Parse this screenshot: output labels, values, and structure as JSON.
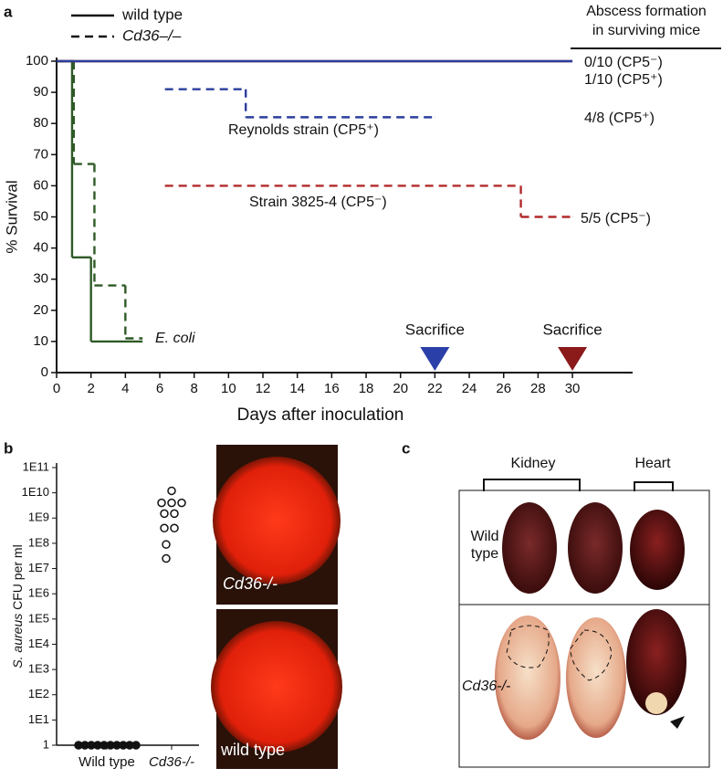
{
  "chart_data": [
    {
      "type": "step",
      "panel": "a",
      "xlabel": "Days after inoculation",
      "ylabel": "% Survival",
      "xlim": [
        0,
        33.5
      ],
      "ylim": [
        0,
        100
      ],
      "xticks": [
        0,
        2,
        4,
        6,
        8,
        10,
        12,
        14,
        16,
        18,
        20,
        22,
        24,
        26,
        28,
        30
      ],
      "yticks": [
        0,
        10,
        20,
        30,
        40,
        50,
        60,
        70,
        80,
        90,
        100
      ],
      "legend": [
        {
          "label": "wild type",
          "dashed": false
        },
        {
          "label": "Cd36–/–",
          "dashed": true
        }
      ],
      "series": [
        {
          "color": "#2e5a26",
          "dashed": false,
          "x": [
            0,
            0.9,
            2,
            5
          ],
          "values": [
            100,
            37,
            10,
            10
          ]
        },
        {
          "color": "#2e5a26",
          "dashed": true,
          "x": [
            0,
            1,
            2.2,
            4,
            5
          ],
          "values": [
            100,
            67,
            28,
            11,
            11
          ]
        },
        {
          "color": "#b22a2a",
          "dashed": false,
          "x": [
            0,
            30
          ],
          "values": [
            100,
            100
          ]
        },
        {
          "color": "#b22a2a",
          "dashed": true,
          "x": [
            6.3,
            27,
            30
          ],
          "values": [
            60,
            50,
            50
          ]
        },
        {
          "color": "#2b3e9c",
          "dashed": false,
          "x": [
            0,
            30
          ],
          "values": [
            100,
            100
          ]
        },
        {
          "color": "#2b3e9c",
          "dashed": true,
          "x": [
            6.3,
            11,
            22
          ],
          "values": [
            91,
            82,
            82
          ]
        }
      ],
      "annotations": [
        "Reynolds strain  (CP5⁺)",
        "Strain 3825-4 (CP5⁻)",
        "E. coli",
        "5/5 (CP5⁻)",
        "0/10 (CP5⁻)",
        "1/10 (CP5⁺)",
        "4/8 (CP5⁺)"
      ],
      "abscess_header": [
        "Abscess formation",
        "in surviving mice"
      ],
      "markers": [
        {
          "label": "Sacrifice",
          "x": 22,
          "color": "#2b3fa8"
        },
        {
          "label": "Sacrifice",
          "x": 30,
          "color": "#8b1a1a"
        }
      ]
    },
    {
      "type": "scatter",
      "panel": "b",
      "ylabel": [
        "S. aureus",
        " CFU per ml"
      ],
      "log_scale": true,
      "ylim": [
        1,
        100000000000
      ],
      "yticks": [
        1,
        {
          "value": 10,
          "label": "1E1"
        },
        {
          "value": 100,
          "label": "1E2"
        },
        {
          "value": 1000,
          "label": "1E3"
        },
        {
          "value": 10000,
          "label": "1E4"
        },
        {
          "value": 100000,
          "label": "1E5"
        },
        {
          "value": 1000000,
          "label": "1E6"
        },
        {
          "value": 10000000,
          "label": "1E7"
        },
        {
          "value": 100000000,
          "label": "1E8"
        },
        {
          "value": 1000000000,
          "label": "1E9"
        },
        {
          "value": 10000000000,
          "label": "1E10"
        },
        {
          "value": 100000000000,
          "label": "1E11"
        }
      ],
      "categories": [
        "Wild type",
        "Cd36-/-"
      ],
      "series": [
        {
          "filled": true,
          "values": [
            1,
            1,
            1,
            1,
            1,
            1,
            1,
            1,
            1,
            1
          ]
        },
        {
          "filled": false,
          "values": [
            12000000000,
            4000000000,
            4000000000,
            4000000000,
            1500000000,
            1500000000,
            400000000,
            400000000,
            90000000,
            25000000
          ]
        }
      ],
      "plate_labels": [
        "Cd36-/-",
        "wild type"
      ]
    }
  ],
  "panel_c": {
    "panel": "c",
    "columns": [
      "Kidney",
      "Heart"
    ],
    "rows": [
      "Wild type",
      "Cd36-/-"
    ]
  }
}
